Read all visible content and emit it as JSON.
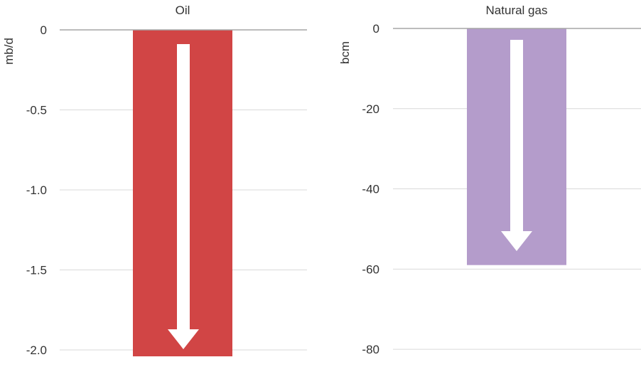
{
  "chart_data": [
    {
      "type": "bar",
      "title": "Oil",
      "ylabel": "mb/d",
      "categories": [
        ""
      ],
      "values": [
        -2.04
      ],
      "ylim": [
        -2.04,
        0
      ],
      "yticks": [
        0,
        -0.5,
        -1.0,
        -1.5,
        -2.0
      ],
      "ytick_labels": [
        "0",
        "-0.5",
        "-1.0",
        "-1.5",
        "-2.0"
      ],
      "grid": true,
      "bar_color": "#d14545",
      "arrow_color": "#ffffff"
    },
    {
      "type": "bar",
      "title": "Natural gas",
      "ylabel": "bcm",
      "categories": [
        ""
      ],
      "values": [
        -59
      ],
      "ylim": [
        -83,
        0
      ],
      "yticks": [
        0,
        -20,
        -40,
        -60,
        -80
      ],
      "ytick_labels": [
        "0",
        "-20",
        "-40",
        "-60",
        "-80"
      ],
      "grid": true,
      "bar_color": "#b49ccb",
      "arrow_color": "#ffffff"
    }
  ]
}
